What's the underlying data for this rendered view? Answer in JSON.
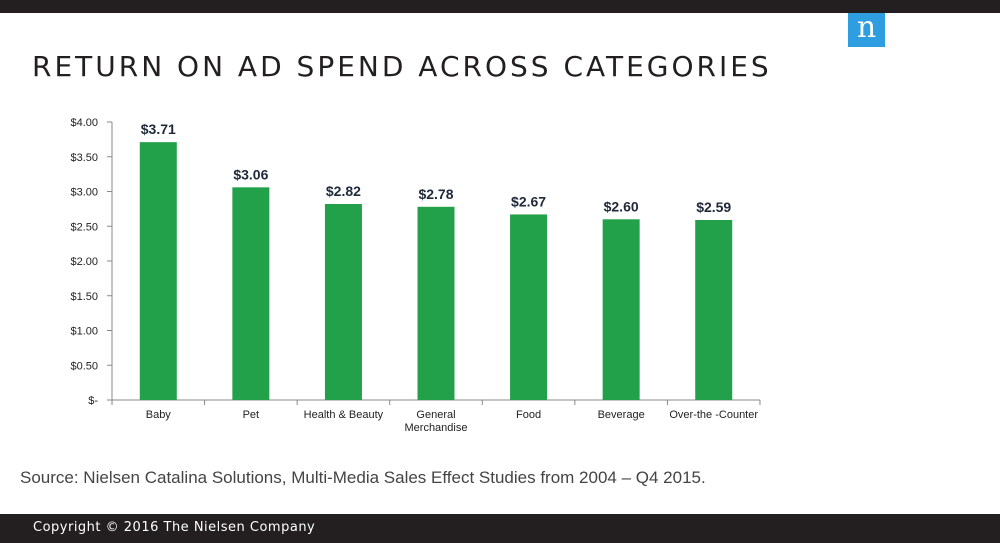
{
  "brand": {
    "logo_letter": "n",
    "logo_color": "#2f9ee0"
  },
  "title": "RETURN ON AD SPEND ACROSS CATEGORIES",
  "chart_data": {
    "type": "bar",
    "categories": [
      "Baby",
      "Pet",
      "Health & Beauty",
      "General Merchandise",
      "Food",
      "Beverage",
      "Over-the -Counter"
    ],
    "values": [
      3.71,
      3.06,
      2.82,
      2.78,
      2.67,
      2.6,
      2.59
    ],
    "data_labels": [
      "$3.71",
      "$3.06",
      "$2.82",
      "$2.78",
      "$2.67",
      "$2.60",
      "$2.59"
    ],
    "ytick_values": [
      0,
      0.5,
      1.0,
      1.5,
      2.0,
      2.5,
      3.0,
      3.5,
      4.0
    ],
    "ytick_labels": [
      "$-",
      "$0.50",
      "$1.00",
      "$1.50",
      "$2.00",
      "$2.50",
      "$3.00",
      "$3.50",
      "$4.00"
    ],
    "ylim": [
      0,
      4
    ],
    "grid": false,
    "bar_color": "#23a04a"
  },
  "source": "Source: Nielsen Catalina Solutions, Multi-Media Sales Effect Studies from 2004 – Q4 2015.",
  "footer": {
    "copyright": "Copyright © 2016 The Nielsen Company"
  }
}
